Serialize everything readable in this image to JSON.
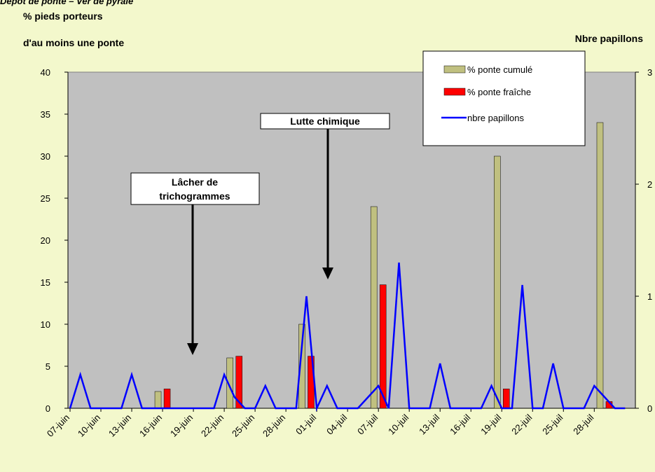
{
  "chart_data": {
    "type": "bar",
    "title": "Dépôt de ponte – Ver de pyrale",
    "ylabel": [
      "% pieds porteurs",
      "d'au moins une ponte"
    ],
    "y2label": "Nbre papillons",
    "categories": [
      "07-juin",
      null,
      null,
      "10-juin",
      null,
      null,
      "13-juin",
      null,
      null,
      "16-juin",
      null,
      null,
      "19-juin",
      null,
      null,
      "22-juin",
      null,
      null,
      "25-juin",
      null,
      null,
      "28-juin",
      null,
      null,
      "01-juil",
      null,
      null,
      "04-juil",
      null,
      null,
      "07-juil",
      null,
      null,
      "10-juil",
      null,
      null,
      "13-juil",
      null,
      null,
      "16-juil",
      null,
      null,
      "19-juil",
      null,
      null,
      "22-juil",
      null,
      null,
      "25-juil",
      null,
      null,
      "28-juil",
      null,
      null,
      null
    ],
    "series": [
      {
        "name": "% ponte cumulé",
        "color": "#c0c080",
        "values": [
          0,
          0,
          0,
          0,
          0,
          0,
          0,
          0,
          0,
          2,
          0,
          0,
          0,
          0,
          0,
          0,
          6,
          0,
          0,
          0,
          0,
          0,
          0,
          10,
          0,
          0,
          0,
          0,
          0,
          0,
          24,
          0,
          0,
          0,
          0,
          0,
          0,
          0,
          0,
          0,
          0,
          0,
          30,
          0,
          0,
          0,
          0,
          0,
          0,
          0,
          0,
          0,
          34,
          0,
          0
        ]
      },
      {
        "name": "% ponte fraîche",
        "color": "#ff0000",
        "values": [
          0,
          0,
          0,
          0,
          0,
          0,
          0,
          0,
          0,
          2.3,
          0,
          0,
          0,
          0,
          0,
          0,
          6.2,
          0,
          0,
          0,
          0,
          0,
          0,
          6.2,
          0,
          0,
          0,
          0,
          0,
          0,
          14.7,
          0,
          0,
          0,
          0,
          0,
          0,
          0,
          0,
          0,
          0,
          0,
          2.3,
          0,
          0,
          0,
          0,
          0,
          0,
          0,
          0,
          0,
          0.8,
          0,
          0
        ]
      },
      {
        "name": "nbre papillons",
        "type": "line",
        "axis": "y2",
        "color": "#0000ff",
        "values": [
          0,
          0.3,
          0,
          0,
          0,
          0,
          0.3,
          0,
          0,
          0,
          0,
          0,
          0,
          0,
          0,
          0.3,
          0.1,
          0,
          0,
          0.2,
          0,
          0,
          0,
          1.0,
          0,
          0.2,
          0,
          0,
          0,
          0.1,
          0.2,
          0,
          1.3,
          0,
          0,
          0,
          0.4,
          0,
          0,
          0,
          0,
          0.2,
          0,
          0,
          1.1,
          0,
          0,
          0.4,
          0,
          0,
          0,
          0.2,
          0.1,
          0,
          0
        ]
      }
    ],
    "ylim": [
      0,
      40
    ],
    "yticks": [
      0,
      5,
      10,
      15,
      20,
      25,
      30,
      35,
      40
    ],
    "y2lim": [
      0,
      3
    ],
    "y2ticks": [
      0,
      1,
      2,
      3
    ],
    "annotations": [
      [
        "Lâcher de",
        "trichogrammes"
      ],
      [
        "Lutte chimique"
      ]
    ],
    "legend": "top-right",
    "plot_background": "#c0c0c0",
    "page_background": "#f3f8cc"
  }
}
